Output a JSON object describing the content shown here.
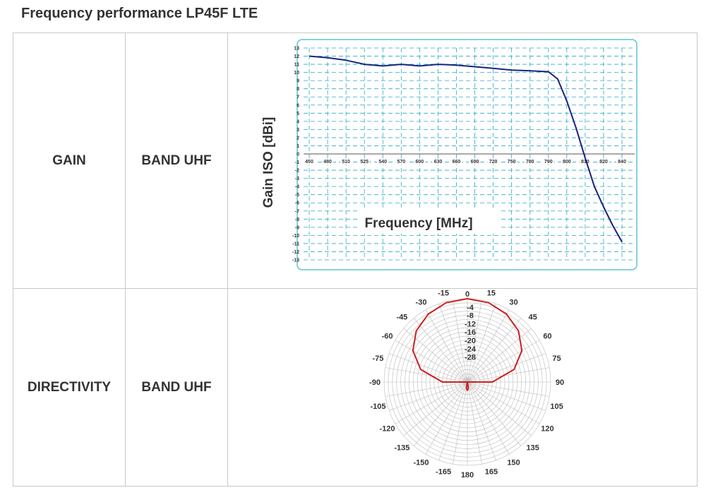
{
  "heading": "Frequency performance LP45F LTE",
  "rows": [
    {
      "property": "GAIN",
      "band": "BAND UHF"
    },
    {
      "property": "DIRECTIVITY",
      "band": "BAND UHF"
    }
  ],
  "colors": {
    "line": "#1a237e",
    "grid": "#29a8c4",
    "frame": "#5ec3d6",
    "polar": "#cc1f1f",
    "polar_grid": "#bbbbbb"
  },
  "chart_data": [
    {
      "type": "line",
      "xlabel": "Frequency [MHz]",
      "ylabel": "Gain ISO [dBi]",
      "x_ticks": [
        "450",
        "480",
        "510",
        "525",
        "540",
        "570",
        "600",
        "630",
        "660",
        "690",
        "720",
        "750",
        "780",
        "790",
        "800",
        "810",
        "820",
        "840"
      ],
      "y_ticks": [
        13,
        12,
        11,
        10,
        9,
        8,
        7,
        6,
        5,
        4,
        3,
        2,
        1,
        0,
        -1,
        -2,
        -3,
        -4,
        -5,
        -6,
        -7,
        -8,
        -9,
        -10,
        -11,
        -12,
        -13
      ],
      "ylim": [
        -13,
        13
      ],
      "grid": true,
      "series": [
        {
          "values": [
            {
              "x": "450",
              "y": 12.0
            },
            {
              "x": "480",
              "y": 11.8
            },
            {
              "x": "510",
              "y": 11.5
            },
            {
              "x": "525",
              "y": 11.0
            },
            {
              "x": "540",
              "y": 10.8
            },
            {
              "x": "570",
              "y": 11.0
            },
            {
              "x": "600",
              "y": 10.8
            },
            {
              "x": "630",
              "y": 11.0
            },
            {
              "x": "660",
              "y": 10.9
            },
            {
              "x": "690",
              "y": 10.7
            },
            {
              "x": "720",
              "y": 10.5
            },
            {
              "x": "750",
              "y": 10.3
            },
            {
              "x": "780",
              "y": 10.2
            },
            {
              "x": "790",
              "y": 10.1
            },
            {
              "x": "795",
              "y": 9.2
            },
            {
              "x": "800",
              "y": 6.5
            },
            {
              "x": "805",
              "y": 3.2
            },
            {
              "x": "810",
              "y": -0.5
            },
            {
              "x": "815",
              "y": -4.0
            },
            {
              "x": "820",
              "y": -6.5
            },
            {
              "x": "830",
              "y": -8.8
            },
            {
              "x": "840",
              "y": -10.8
            }
          ]
        }
      ]
    },
    {
      "type": "polar",
      "angle_ticks": [
        0,
        15,
        30,
        45,
        60,
        75,
        90,
        105,
        120,
        135,
        150,
        165,
        180,
        -165,
        -150,
        -135,
        -120,
        -105,
        -90,
        -75,
        -60,
        -45,
        -30,
        -15
      ],
      "radial_ticks": [
        0,
        -4,
        -8,
        -12,
        -16,
        -20,
        -24,
        -28
      ],
      "rlim": [
        -40,
        0
      ],
      "series": [
        {
          "values": [
            {
              "angle": 0,
              "r": 0
            },
            {
              "angle": 15,
              "r": -0.6
            },
            {
              "angle": 30,
              "r": -2.4
            },
            {
              "angle": 45,
              "r": -5.3
            },
            {
              "angle": 60,
              "r": -9.8
            },
            {
              "angle": 75,
              "r": -16.8
            },
            {
              "angle": 90,
              "r": -28
            },
            {
              "angle": 105,
              "r": -40
            },
            {
              "angle": 160,
              "r": -40
            },
            {
              "angle": 170,
              "r": -37
            },
            {
              "angle": 180,
              "r": -36
            },
            {
              "angle": -170,
              "r": -37
            },
            {
              "angle": -160,
              "r": -40
            },
            {
              "angle": -105,
              "r": -40
            },
            {
              "angle": -90,
              "r": -28
            },
            {
              "angle": -75,
              "r": -16.8
            },
            {
              "angle": -60,
              "r": -9.8
            },
            {
              "angle": -45,
              "r": -5.3
            },
            {
              "angle": -30,
              "r": -2.4
            },
            {
              "angle": -15,
              "r": -0.6
            }
          ]
        }
      ]
    }
  ]
}
